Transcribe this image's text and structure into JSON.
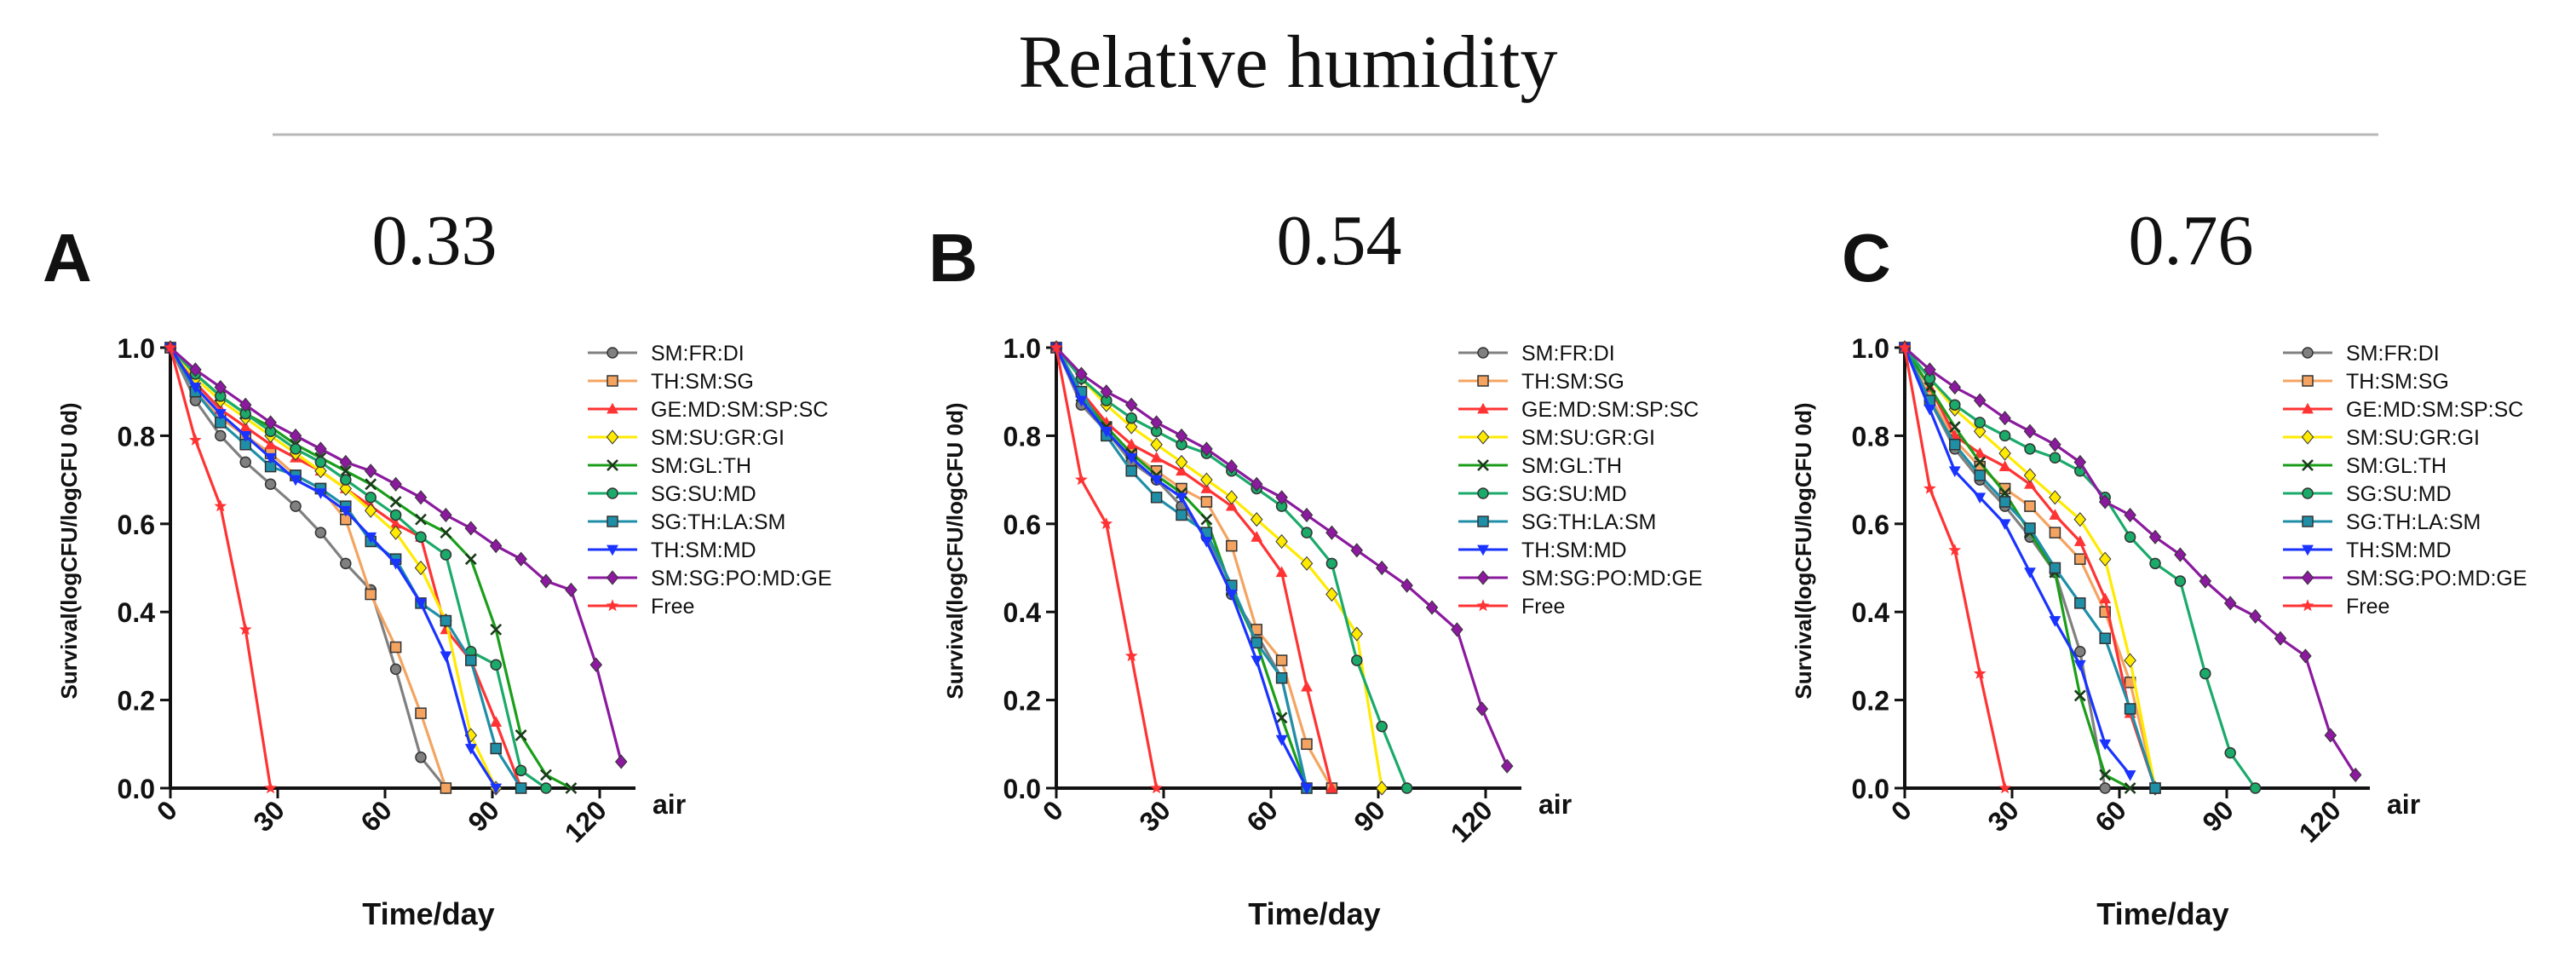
{
  "title": "Relative humidity",
  "series_styles": [
    {
      "name": "SM:FR:DI",
      "color": "#808080",
      "marker": "circle"
    },
    {
      "name": "TH:SM:SG",
      "color": "#f4a460",
      "marker": "square"
    },
    {
      "name": "GE:MD:SM:SP:SC",
      "color": "#ff3333",
      "marker": "triangle"
    },
    {
      "name": "SM:SU:GR:GI",
      "color": "#ffea00",
      "marker": "diamond"
    },
    {
      "name": "SM:GL:TH",
      "color": "#1a9e1a",
      "marker": "x"
    },
    {
      "name": "SG:SU:MD",
      "color": "#1aaa6a",
      "marker": "circle"
    },
    {
      "name": "SG:TH:LA:SM",
      "color": "#1f8fa8",
      "marker": "square"
    },
    {
      "name": "TH:SM:MD",
      "color": "#1a33ff",
      "marker": "triangle-down"
    },
    {
      "name": "SM:SG:PO:MD:GE",
      "color": "#8b1a9e",
      "marker": "diamond"
    },
    {
      "name": "Free",
      "color": "#ff3333",
      "marker": "star"
    }
  ],
  "chart_data": [
    {
      "type": "line",
      "panel_label": "A",
      "subtitle": "0.33",
      "xlabel": "Time/day",
      "ylabel": "Survival(logCFU/logCFU 0d)",
      "axis_annotation": "air",
      "xlim": [
        0,
        130
      ],
      "ylim": [
        0,
        1.0
      ],
      "xticks": [
        "0",
        "30",
        "60",
        "90",
        "120"
      ],
      "yticks": [
        "0.0",
        "0.2",
        "0.4",
        "0.6",
        "0.8",
        "1.0"
      ],
      "series": [
        {
          "name": "SM:FR:DI",
          "x": [
            0,
            7,
            14,
            21,
            28,
            35,
            42,
            49,
            56,
            63,
            70,
            77
          ],
          "y": [
            1.0,
            0.88,
            0.8,
            0.74,
            0.69,
            0.64,
            0.58,
            0.51,
            0.45,
            0.27,
            0.07,
            0.0
          ]
        },
        {
          "name": "TH:SM:SG",
          "x": [
            0,
            7,
            14,
            21,
            28,
            35,
            42,
            49,
            56,
            63,
            70,
            77
          ],
          "y": [
            1.0,
            0.9,
            0.84,
            0.8,
            0.76,
            0.71,
            0.68,
            0.61,
            0.44,
            0.32,
            0.17,
            0.0
          ]
        },
        {
          "name": "GE:MD:SM:SP:SC",
          "x": [
            0,
            7,
            14,
            21,
            28,
            35,
            42,
            49,
            56,
            63,
            70,
            77,
            84,
            91,
            98
          ],
          "y": [
            1.0,
            0.92,
            0.86,
            0.82,
            0.78,
            0.75,
            0.72,
            0.68,
            0.64,
            0.6,
            0.57,
            0.36,
            0.29,
            0.15,
            0.0
          ]
        },
        {
          "name": "SM:SU:GR:GI",
          "x": [
            0,
            7,
            14,
            21,
            28,
            35,
            42,
            49,
            56,
            63,
            70,
            77,
            84,
            91
          ],
          "y": [
            1.0,
            0.93,
            0.88,
            0.84,
            0.8,
            0.76,
            0.72,
            0.68,
            0.63,
            0.58,
            0.5,
            0.38,
            0.12,
            0.0
          ]
        },
        {
          "name": "SM:GL:TH",
          "x": [
            0,
            7,
            14,
            21,
            28,
            35,
            42,
            49,
            56,
            63,
            70,
            77,
            84,
            91,
            98,
            105,
            112
          ],
          "y": [
            1.0,
            0.94,
            0.89,
            0.85,
            0.82,
            0.78,
            0.75,
            0.72,
            0.69,
            0.65,
            0.61,
            0.58,
            0.52,
            0.36,
            0.12,
            0.03,
            0.0
          ]
        },
        {
          "name": "SG:SU:MD",
          "x": [
            0,
            7,
            14,
            21,
            28,
            35,
            42,
            49,
            56,
            63,
            70,
            77,
            84,
            91,
            98,
            105
          ],
          "y": [
            1.0,
            0.94,
            0.89,
            0.85,
            0.81,
            0.77,
            0.74,
            0.7,
            0.66,
            0.62,
            0.57,
            0.53,
            0.31,
            0.28,
            0.04,
            0.0
          ]
        },
        {
          "name": "SG:TH:LA:SM",
          "x": [
            0,
            7,
            14,
            21,
            28,
            35,
            42,
            49,
            56,
            63,
            70,
            77,
            84,
            91,
            98
          ],
          "y": [
            1.0,
            0.9,
            0.83,
            0.78,
            0.73,
            0.71,
            0.68,
            0.64,
            0.56,
            0.52,
            0.42,
            0.38,
            0.29,
            0.09,
            0.0
          ]
        },
        {
          "name": "TH:SM:MD",
          "x": [
            0,
            7,
            14,
            21,
            28,
            35,
            42,
            49,
            56,
            63,
            70,
            77,
            84,
            91
          ],
          "y": [
            1.0,
            0.91,
            0.85,
            0.8,
            0.75,
            0.7,
            0.67,
            0.63,
            0.57,
            0.51,
            0.42,
            0.3,
            0.09,
            0.0
          ]
        },
        {
          "name": "SM:SG:PO:MD:GE",
          "x": [
            0,
            7,
            14,
            21,
            28,
            35,
            42,
            49,
            56,
            63,
            70,
            77,
            84,
            91,
            98,
            105,
            112,
            119,
            126
          ],
          "y": [
            1.0,
            0.95,
            0.91,
            0.87,
            0.83,
            0.8,
            0.77,
            0.74,
            0.72,
            0.69,
            0.66,
            0.62,
            0.59,
            0.55,
            0.52,
            0.47,
            0.45,
            0.28,
            0.06
          ]
        },
        {
          "name": "Free",
          "x": [
            0,
            7,
            14,
            21,
            28
          ],
          "y": [
            1.0,
            0.79,
            0.64,
            0.36,
            0.0
          ]
        }
      ]
    },
    {
      "type": "line",
      "panel_label": "B",
      "subtitle": "0.54",
      "xlabel": "Time/day",
      "ylabel": "Survival(logCFU/logCFU 0d)",
      "axis_annotation": "air",
      "xlim": [
        0,
        130
      ],
      "ylim": [
        0,
        1.0
      ],
      "xticks": [
        "0",
        "30",
        "60",
        "90",
        "120"
      ],
      "yticks": [
        "0.0",
        "0.2",
        "0.4",
        "0.6",
        "0.8",
        "1.0"
      ],
      "series": [
        {
          "name": "SM:FR:DI",
          "x": [
            0,
            7,
            14,
            21,
            28,
            35,
            42,
            49,
            56,
            63,
            70
          ],
          "y": [
            1.0,
            0.87,
            0.81,
            0.74,
            0.7,
            0.64,
            0.57,
            0.44,
            0.35,
            0.25,
            0.0
          ]
        },
        {
          "name": "TH:SM:SG",
          "x": [
            0,
            7,
            14,
            21,
            28,
            35,
            42,
            49,
            56,
            63,
            70,
            77
          ],
          "y": [
            1.0,
            0.9,
            0.82,
            0.76,
            0.72,
            0.68,
            0.65,
            0.55,
            0.36,
            0.29,
            0.1,
            0.0
          ]
        },
        {
          "name": "GE:MD:SM:SP:SC",
          "x": [
            0,
            7,
            14,
            21,
            28,
            35,
            42,
            49,
            56,
            63,
            70,
            77
          ],
          "y": [
            1.0,
            0.9,
            0.83,
            0.78,
            0.75,
            0.72,
            0.68,
            0.64,
            0.57,
            0.49,
            0.23,
            0.0
          ]
        },
        {
          "name": "SM:SU:GR:GI",
          "x": [
            0,
            7,
            14,
            21,
            28,
            35,
            42,
            49,
            56,
            63,
            70,
            77,
            84,
            91
          ],
          "y": [
            1.0,
            0.93,
            0.87,
            0.82,
            0.78,
            0.74,
            0.7,
            0.66,
            0.61,
            0.56,
            0.51,
            0.44,
            0.35,
            0.0
          ]
        },
        {
          "name": "SM:GL:TH",
          "x": [
            0,
            7,
            14,
            21,
            28,
            35,
            42,
            49,
            56,
            63,
            70
          ],
          "y": [
            1.0,
            0.89,
            0.82,
            0.76,
            0.71,
            0.67,
            0.61,
            0.45,
            0.33,
            0.16,
            0.0
          ]
        },
        {
          "name": "SG:SU:MD",
          "x": [
            0,
            7,
            14,
            21,
            28,
            35,
            42,
            49,
            56,
            63,
            70,
            77,
            84,
            91,
            98
          ],
          "y": [
            1.0,
            0.93,
            0.88,
            0.84,
            0.81,
            0.78,
            0.76,
            0.72,
            0.68,
            0.64,
            0.58,
            0.51,
            0.29,
            0.14,
            0.0
          ]
        },
        {
          "name": "SG:TH:LA:SM",
          "x": [
            0,
            7,
            14,
            21,
            28,
            35,
            42,
            49,
            56,
            63,
            70
          ],
          "y": [
            1.0,
            0.9,
            0.8,
            0.72,
            0.66,
            0.62,
            0.58,
            0.46,
            0.33,
            0.25,
            0.0
          ]
        },
        {
          "name": "TH:SM:MD",
          "x": [
            0,
            7,
            14,
            21,
            28,
            35,
            42,
            49,
            56,
            63,
            70
          ],
          "y": [
            1.0,
            0.88,
            0.81,
            0.75,
            0.7,
            0.66,
            0.56,
            0.44,
            0.29,
            0.11,
            0.0
          ]
        },
        {
          "name": "SM:SG:PO:MD:GE",
          "x": [
            0,
            7,
            14,
            21,
            28,
            35,
            42,
            49,
            56,
            63,
            70,
            77,
            84,
            91,
            98,
            105,
            112,
            119,
            126
          ],
          "y": [
            1.0,
            0.94,
            0.9,
            0.87,
            0.83,
            0.8,
            0.77,
            0.73,
            0.69,
            0.66,
            0.62,
            0.58,
            0.54,
            0.5,
            0.46,
            0.41,
            0.36,
            0.18,
            0.05
          ]
        },
        {
          "name": "Free",
          "x": [
            0,
            7,
            14,
            21,
            28
          ],
          "y": [
            1.0,
            0.7,
            0.6,
            0.3,
            0.0
          ]
        }
      ]
    },
    {
      "type": "line",
      "panel_label": "C",
      "subtitle": "0.76",
      "xlabel": "Time/day",
      "ylabel": "Survival(logCFU/logCFU 0d)",
      "axis_annotation": "air",
      "xlim": [
        0,
        130
      ],
      "ylim": [
        0,
        1.0
      ],
      "xticks": [
        "0",
        "30",
        "60",
        "90",
        "120"
      ],
      "yticks": [
        "0.0",
        "0.2",
        "0.4",
        "0.6",
        "0.8",
        "1.0"
      ],
      "series": [
        {
          "name": "SM:FR:DI",
          "x": [
            0,
            7,
            14,
            21,
            28,
            35,
            42,
            49,
            56
          ],
          "y": [
            1.0,
            0.88,
            0.77,
            0.7,
            0.64,
            0.57,
            0.49,
            0.31,
            0.0
          ]
        },
        {
          "name": "TH:SM:SG",
          "x": [
            0,
            7,
            14,
            21,
            28,
            35,
            42,
            49,
            56,
            63,
            70
          ],
          "y": [
            1.0,
            0.89,
            0.79,
            0.73,
            0.68,
            0.64,
            0.58,
            0.52,
            0.4,
            0.24,
            0.0
          ]
        },
        {
          "name": "GE:MD:SM:SP:SC",
          "x": [
            0,
            7,
            14,
            21,
            28,
            35,
            42,
            49,
            56,
            63,
            70
          ],
          "y": [
            1.0,
            0.91,
            0.8,
            0.76,
            0.73,
            0.69,
            0.62,
            0.56,
            0.43,
            0.17,
            0.0
          ]
        },
        {
          "name": "SM:SU:GR:GI",
          "x": [
            0,
            7,
            14,
            21,
            28,
            35,
            42,
            49,
            56,
            63,
            70
          ],
          "y": [
            1.0,
            0.93,
            0.86,
            0.81,
            0.76,
            0.71,
            0.66,
            0.61,
            0.52,
            0.29,
            0.0
          ]
        },
        {
          "name": "SM:GL:TH",
          "x": [
            0,
            7,
            14,
            21,
            28,
            35,
            42,
            49,
            56,
            63
          ],
          "y": [
            1.0,
            0.91,
            0.82,
            0.74,
            0.67,
            0.58,
            0.49,
            0.21,
            0.03,
            0.0
          ]
        },
        {
          "name": "SG:SU:MD",
          "x": [
            0,
            7,
            14,
            21,
            28,
            35,
            42,
            49,
            56,
            63,
            70,
            77,
            84,
            91,
            98
          ],
          "y": [
            1.0,
            0.93,
            0.87,
            0.83,
            0.8,
            0.77,
            0.75,
            0.72,
            0.66,
            0.57,
            0.51,
            0.47,
            0.26,
            0.08,
            0.0
          ]
        },
        {
          "name": "SG:TH:LA:SM",
          "x": [
            0,
            7,
            14,
            21,
            28,
            35,
            42,
            49,
            56,
            63,
            70
          ],
          "y": [
            1.0,
            0.88,
            0.78,
            0.71,
            0.65,
            0.59,
            0.5,
            0.42,
            0.34,
            0.18,
            0.0
          ]
        },
        {
          "name": "TH:SM:MD",
          "x": [
            0,
            7,
            14,
            21,
            28,
            35,
            42,
            49,
            56,
            63
          ],
          "y": [
            1.0,
            0.86,
            0.72,
            0.66,
            0.6,
            0.49,
            0.38,
            0.28,
            0.1,
            0.03
          ]
        },
        {
          "name": "SM:SG:PO:MD:GE",
          "x": [
            0,
            7,
            14,
            21,
            28,
            35,
            42,
            49,
            56,
            63,
            70,
            77,
            84,
            91,
            98,
            105,
            112,
            119,
            126
          ],
          "y": [
            1.0,
            0.95,
            0.91,
            0.88,
            0.84,
            0.81,
            0.78,
            0.74,
            0.65,
            0.62,
            0.57,
            0.53,
            0.47,
            0.42,
            0.39,
            0.34,
            0.3,
            0.12,
            0.03
          ]
        },
        {
          "name": "Free",
          "x": [
            0,
            7,
            14,
            21,
            28
          ],
          "y": [
            1.0,
            0.68,
            0.54,
            0.26,
            0.0
          ]
        }
      ]
    }
  ]
}
